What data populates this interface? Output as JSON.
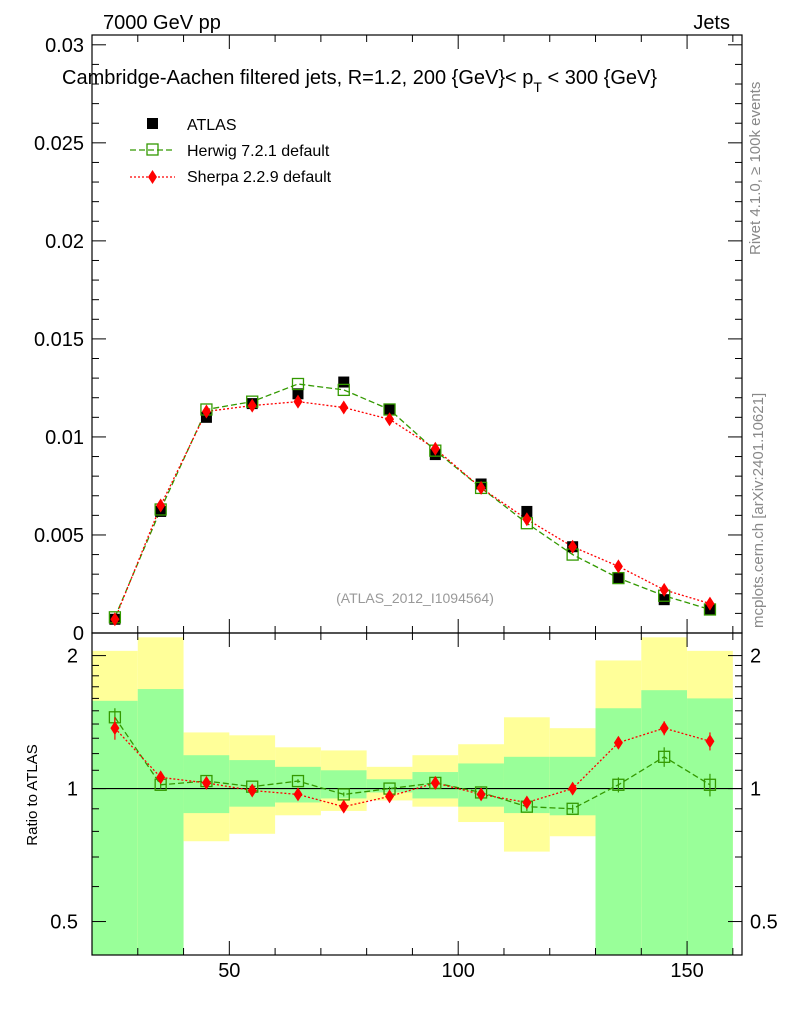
{
  "header": {
    "left": "7000 GeV pp",
    "right": "Jets",
    "title": "Cambridge-Aachen filtered jets, R=1.2, 200 {GeV}< p",
    "title_sub": "T",
    "title_tail": " < 300 {GeV}"
  },
  "side_text": {
    "rivet": "Rivet 4.1.0, ≥ 100k events",
    "mcplots": "mcplots.cern.ch [arXiv:2401.10621]"
  },
  "watermark": "(ATLAS_2012_I1094564)",
  "colors": {
    "atlas": "#000000",
    "herwig": "#339900",
    "sherpa": "#ff0000",
    "band_yellow": "#ffff99",
    "band_green": "#99ff99"
  },
  "legend": [
    {
      "key": "atlas",
      "label": "ATLAS"
    },
    {
      "key": "herwig",
      "label": "Herwig 7.2.1 default"
    },
    {
      "key": "sherpa",
      "label": "Sherpa 2.2.9 default"
    }
  ],
  "chart_data": [
    {
      "type": "scatter",
      "panel": "main",
      "xlim": [
        20,
        162
      ],
      "ylim": [
        0,
        0.0305
      ],
      "yticks": [
        0,
        0.005,
        0.01,
        0.015,
        0.02,
        0.025,
        0.03
      ],
      "ytick_labels": [
        "0",
        "0.005",
        "0.01",
        "0.015",
        "0.02",
        "0.025",
        "0.03"
      ],
      "x": [
        25,
        35,
        45,
        55,
        65,
        75,
        85,
        95,
        105,
        115,
        125,
        135,
        145,
        155
      ],
      "series": [
        {
          "name": "ATLAS",
          "values": [
            0.0007,
            0.0062,
            0.011,
            0.0117,
            0.0122,
            0.0128,
            0.0114,
            0.0091,
            0.0076,
            0.0062,
            0.0044,
            0.0028,
            0.0017,
            0.0012
          ]
        },
        {
          "name": "Herwig 7.2.1 default",
          "values": [
            0.0008,
            0.0063,
            0.0114,
            0.0118,
            0.0127,
            0.0124,
            0.0114,
            0.0093,
            0.0074,
            0.0056,
            0.004,
            0.0028,
            0.0019,
            0.0012
          ]
        },
        {
          "name": "Sherpa 2.2.9 default",
          "values": [
            0.0007,
            0.0065,
            0.0113,
            0.0116,
            0.0118,
            0.0115,
            0.0109,
            0.0094,
            0.0074,
            0.0058,
            0.0044,
            0.0034,
            0.0022,
            0.0015
          ]
        }
      ]
    },
    {
      "type": "scatter",
      "panel": "ratio",
      "ylabel": "Ratio to ATLAS",
      "xlim": [
        20,
        162
      ],
      "ylim": [
        0.42,
        2.25
      ],
      "xticks": [
        50,
        100,
        150
      ],
      "xtick_labels": [
        "50",
        "100",
        "150"
      ],
      "yticks": [
        0.5,
        1,
        2
      ],
      "ytick_labels": [
        "0.5",
        "1",
        "2"
      ],
      "x": [
        25,
        35,
        45,
        55,
        65,
        75,
        85,
        95,
        105,
        115,
        125,
        135,
        145,
        155
      ],
      "bins": [
        [
          20,
          30
        ],
        [
          30,
          40
        ],
        [
          40,
          50
        ],
        [
          50,
          60
        ],
        [
          60,
          70
        ],
        [
          70,
          80
        ],
        [
          80,
          90
        ],
        [
          90,
          100
        ],
        [
          100,
          110
        ],
        [
          110,
          120
        ],
        [
          120,
          130
        ],
        [
          130,
          140
        ],
        [
          140,
          150
        ],
        [
          150,
          160
        ]
      ],
      "band_yellow": [
        [
          0.46,
          2.05
        ],
        [
          0.38,
          2.2
        ],
        [
          0.76,
          1.34
        ],
        [
          0.79,
          1.32
        ],
        [
          0.87,
          1.24
        ],
        [
          0.89,
          1.22
        ],
        [
          0.94,
          1.12
        ],
        [
          0.91,
          1.19
        ],
        [
          0.84,
          1.26
        ],
        [
          0.72,
          1.45
        ],
        [
          0.78,
          1.37
        ],
        [
          0.54,
          1.95
        ],
        [
          0.38,
          2.2
        ],
        [
          0.46,
          2.05
        ]
      ],
      "band_green": [
        [
          0.3,
          1.58
        ],
        [
          0.3,
          1.68
        ],
        [
          0.88,
          1.19
        ],
        [
          0.91,
          1.16
        ],
        [
          0.93,
          1.12
        ],
        [
          0.95,
          1.1
        ],
        [
          0.98,
          1.05
        ],
        [
          0.95,
          1.09
        ],
        [
          0.91,
          1.14
        ],
        [
          0.88,
          1.18
        ],
        [
          0.87,
          1.18
        ],
        [
          0.3,
          1.52
        ],
        [
          0.3,
          1.67
        ],
        [
          0.3,
          1.6
        ]
      ],
      "series": [
        {
          "name": "Herwig 7.2.1 default",
          "values": [
            1.45,
            1.02,
            1.04,
            1.01,
            1.04,
            0.97,
            1.0,
            1.03,
            0.98,
            0.91,
            0.9,
            1.02,
            1.18,
            1.02
          ],
          "errors": [
            0.07,
            0.02,
            0.01,
            0.01,
            0.01,
            0.01,
            0.01,
            0.01,
            0.01,
            0.02,
            0.02,
            0.04,
            0.06,
            0.06
          ]
        },
        {
          "name": "Sherpa 2.2.9 default",
          "values": [
            1.37,
            1.06,
            1.03,
            0.99,
            0.97,
            0.91,
            0.96,
            1.03,
            0.97,
            0.93,
            1.0,
            1.27,
            1.37,
            1.28
          ],
          "errors": [
            0.08,
            0.02,
            0.01,
            0.01,
            0.01,
            0.01,
            0.01,
            0.01,
            0.01,
            0.02,
            0.02,
            0.04,
            0.05,
            0.06
          ]
        }
      ]
    }
  ]
}
